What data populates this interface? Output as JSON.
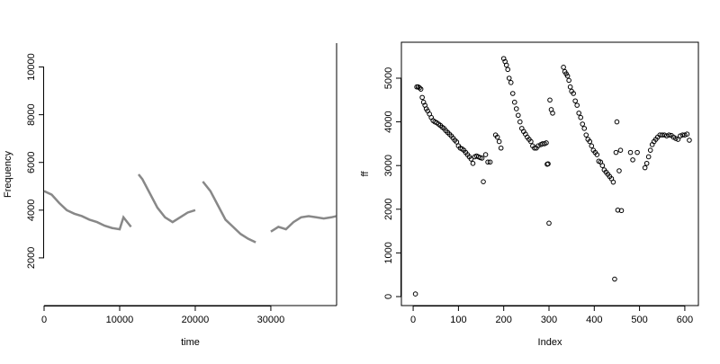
{
  "chart_data": [
    {
      "type": "line",
      "xlabel": "time",
      "ylabel": "Frequency",
      "color": "#555555",
      "x": [
        0,
        1000,
        2000,
        3000,
        4000,
        5000,
        6000,
        7000,
        8000,
        9000,
        10000,
        10500,
        11000,
        11500,
        12000,
        12500,
        13000,
        14000,
        15000,
        16000,
        17000,
        18000,
        19000,
        20000,
        20500,
        21000,
        22000,
        23000,
        24000,
        25000,
        26000,
        27000,
        28000,
        29000,
        30000,
        31000,
        32000,
        33000,
        34000,
        35000,
        36000,
        37000,
        38000,
        38700
      ],
      "values": [
        4800,
        4650,
        4300,
        4000,
        3850,
        3750,
        3600,
        3500,
        3350,
        3250,
        3200,
        3700,
        3500,
        3300,
        null,
        5500,
        5300,
        4700,
        4100,
        3700,
        3500,
        3700,
        3900,
        4000,
        null,
        5200,
        4800,
        4200,
        3600,
        3300,
        3000,
        2800,
        2650,
        null,
        3100,
        3300,
        3200,
        3500,
        3700,
        3750,
        3700,
        3650,
        3700,
        3750
      ],
      "xlim": [
        0,
        38700
      ],
      "ylim": [
        0,
        11000
      ],
      "xticks": [
        0,
        10000,
        20000,
        30000
      ],
      "yticks": [
        2000,
        4000,
        6000,
        8000,
        10000
      ]
    },
    {
      "type": "scatter",
      "xlabel": "Index",
      "ylabel": "ff",
      "color": "#000000",
      "x": [
        5,
        8,
        11,
        14,
        17,
        20,
        23,
        26,
        29,
        32,
        36,
        40,
        44,
        48,
        52,
        56,
        60,
        64,
        68,
        72,
        76,
        80,
        84,
        88,
        92,
        96,
        100,
        104,
        108,
        112,
        116,
        120,
        124,
        128,
        132,
        136,
        140,
        144,
        148,
        152,
        155,
        160,
        165,
        170,
        182,
        186,
        190,
        194,
        200,
        203,
        206,
        209,
        212,
        216,
        220,
        224,
        228,
        232,
        236,
        240,
        244,
        248,
        252,
        256,
        260,
        264,
        268,
        272,
        276,
        282,
        286,
        290,
        294,
        296,
        298,
        300,
        302,
        305,
        308,
        332,
        335,
        338,
        341,
        344,
        347,
        350,
        354,
        358,
        362,
        366,
        370,
        374,
        378,
        382,
        386,
        390,
        394,
        398,
        402,
        406,
        410,
        414,
        418,
        422,
        426,
        430,
        434,
        438,
        442,
        445,
        448,
        450,
        452,
        455,
        458,
        460,
        480,
        485,
        495,
        512,
        516,
        520,
        524,
        528,
        532,
        536,
        540,
        545,
        550,
        555,
        560,
        565,
        570,
        575,
        580,
        585,
        590,
        595,
        600,
        605,
        610
      ],
      "values": [
        60,
        4800,
        4800,
        4780,
        4750,
        4560,
        4450,
        4380,
        4300,
        4250,
        4180,
        4100,
        4030,
        4000,
        3980,
        3950,
        3920,
        3880,
        3850,
        3800,
        3760,
        3720,
        3680,
        3630,
        3580,
        3540,
        3450,
        3400,
        3380,
        3350,
        3300,
        3250,
        3200,
        3150,
        3050,
        3200,
        3220,
        3200,
        3180,
        3170,
        2630,
        3250,
        3080,
        3080,
        3700,
        3650,
        3550,
        3400,
        5450,
        5380,
        5300,
        5200,
        5000,
        4900,
        4650,
        4450,
        4300,
        4150,
        4000,
        3850,
        3780,
        3720,
        3650,
        3600,
        3550,
        3450,
        3400,
        3400,
        3450,
        3480,
        3500,
        3500,
        3520,
        3030,
        3040,
        1680,
        4500,
        4280,
        4200,
        5250,
        5150,
        5100,
        5050,
        4950,
        4800,
        4700,
        4650,
        4480,
        4380,
        4200,
        4100,
        3950,
        3850,
        3700,
        3600,
        3550,
        3450,
        3350,
        3300,
        3250,
        3100,
        3080,
        3000,
        2900,
        2850,
        2800,
        2750,
        2700,
        2620,
        400,
        3300,
        4000,
        1980,
        2880,
        3350,
        1970,
        3300,
        3130,
        3300,
        2950,
        3050,
        3200,
        3350,
        3480,
        3550,
        3600,
        3650,
        3700,
        3700,
        3700,
        3680,
        3700,
        3690,
        3650,
        3620,
        3600,
        3680,
        3700,
        3700,
        3720,
        3580
      ],
      "xlim": [
        -26,
        630
      ],
      "ylim": [
        -206,
        5823
      ],
      "xticks": [
        0,
        100,
        200,
        300,
        400,
        500,
        600
      ],
      "yticks": [
        0,
        1000,
        2000,
        3000,
        4000,
        5000
      ]
    }
  ]
}
